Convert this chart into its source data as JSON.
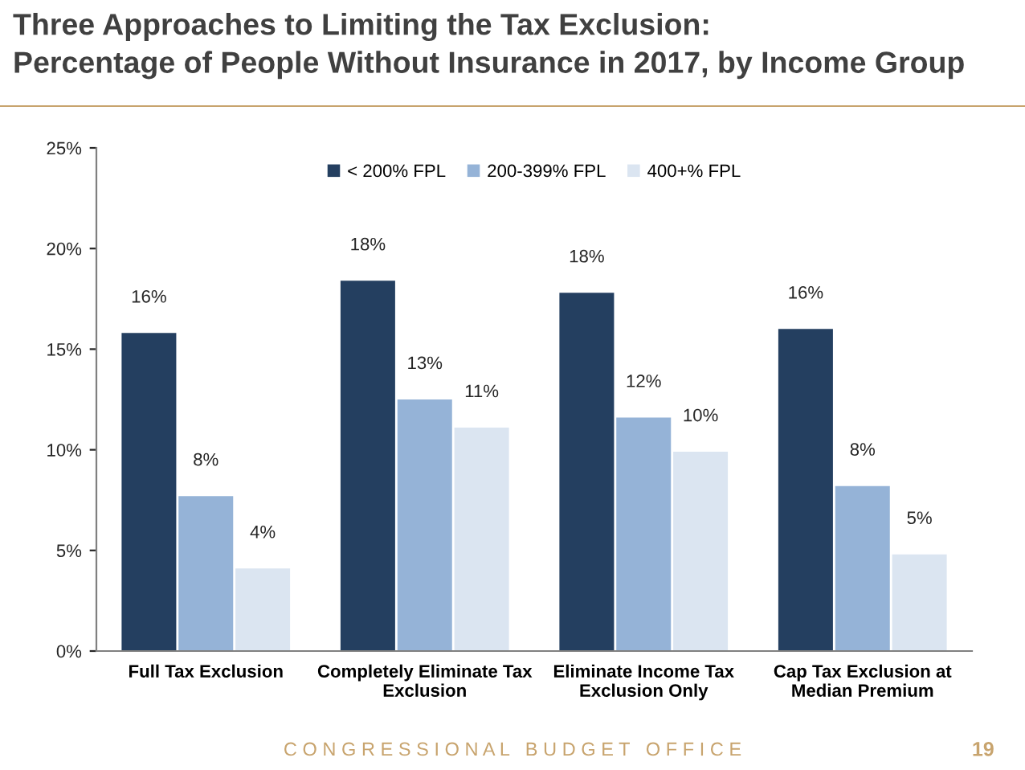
{
  "chart_data": {
    "type": "bar",
    "title": "Three Approaches to Limiting the Tax Exclusion:\nPercentage of People Without Insurance in 2017, by Income Group",
    "categories": [
      "Full Tax Exclusion",
      "Completely Eliminate Tax\nExclusion",
      "Eliminate Income Tax\nExclusion Only",
      "Cap Tax Exclusion at\nMedian Premium"
    ],
    "series": [
      {
        "name": "< 200% FPL",
        "color": "#243f60",
        "values": [
          15.8,
          18.4,
          17.8,
          16.0
        ],
        "value_labels": [
          "16%",
          "18%",
          "18%",
          "16%"
        ]
      },
      {
        "name": "200-399% FPL",
        "color": "#95b3d7",
        "values": [
          7.7,
          12.5,
          11.6,
          8.2
        ],
        "value_labels": [
          "8%",
          "13%",
          "12%",
          "8%"
        ]
      },
      {
        "name": "400+% FPL",
        "color": "#dbe5f1",
        "values": [
          4.1,
          11.1,
          9.9,
          4.8
        ],
        "value_labels": [
          "4%",
          "11%",
          "10%",
          "5%"
        ]
      }
    ],
    "ylim": [
      0,
      25
    ],
    "yticks": [
      {
        "value": 0,
        "label": "0%"
      },
      {
        "value": 5,
        "label": "5%"
      },
      {
        "value": 10,
        "label": "10%"
      },
      {
        "value": 15,
        "label": "15%"
      },
      {
        "value": 20,
        "label": "20%"
      },
      {
        "value": 25,
        "label": "25%"
      }
    ],
    "grid": false,
    "legend": "top",
    "annotations": [
      "C O N G R E S S I O N A L   B U D G E T   O F F I C E",
      "19"
    ]
  }
}
